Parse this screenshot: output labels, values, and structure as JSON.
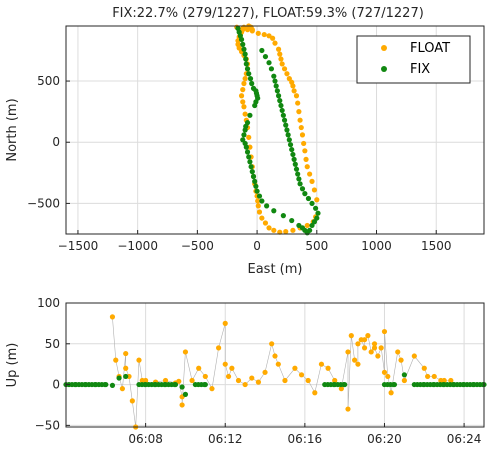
{
  "colors": {
    "float": "#ffaa00",
    "fix": "#118811",
    "grid": "#dcdcdc",
    "axis": "#262626",
    "track": "#b0b0b0"
  },
  "chart_data": [
    {
      "type": "scatter",
      "title": "FIX:22.7% (279/1227), FLOAT:59.3% (727/1227)",
      "xlabel": "East (m)",
      "ylabel": "North (m)",
      "xlim": [
        -1600,
        1900
      ],
      "ylim": [
        -750,
        950
      ],
      "xticks": [
        -1500,
        -1000,
        -500,
        0,
        500,
        1000,
        1500
      ],
      "yticks": [
        -500,
        0,
        500
      ],
      "grid": true,
      "legend": {
        "placement": "top-right",
        "entries": [
          "FLOAT",
          "FIX"
        ]
      },
      "series": [
        {
          "name": "FLOAT",
          "x": [
            -170,
            -120,
            -80,
            -40,
            10,
            60,
            100,
            130,
            150,
            180,
            190,
            200,
            210,
            230,
            250,
            270,
            290,
            300,
            310,
            330,
            340,
            350,
            360,
            370,
            380,
            390,
            400,
            410,
            420,
            440,
            460,
            480,
            500,
            490,
            470,
            420,
            360,
            300,
            240,
            190,
            140,
            100,
            70,
            40,
            20,
            10,
            5,
            0,
            -10,
            -20,
            -30,
            -40,
            -50,
            -60,
            -70,
            -80,
            -90,
            -100,
            -110,
            -120,
            -130,
            -120,
            -110,
            -100,
            -90,
            -80,
            -80,
            -90,
            -110,
            -130,
            -150,
            -160,
            -160,
            -150,
            -140,
            -130,
            -120,
            -110,
            -70,
            -50,
            -40
          ],
          "y": [
            940,
            930,
            920,
            910,
            890,
            880,
            870,
            850,
            810,
            760,
            720,
            680,
            640,
            600,
            560,
            520,
            490,
            460,
            420,
            380,
            320,
            250,
            180,
            120,
            60,
            -10,
            -70,
            -140,
            -200,
            -260,
            -320,
            -390,
            -470,
            -610,
            -650,
            -680,
            -700,
            -720,
            -730,
            -735,
            -720,
            -700,
            -660,
            -620,
            -570,
            -520,
            -480,
            -440,
            -400,
            -340,
            -280,
            -200,
            -120,
            -40,
            40,
            120,
            180,
            230,
            290,
            330,
            380,
            430,
            480,
            520,
            560,
            600,
            640,
            680,
            710,
            740,
            770,
            800,
            830,
            860,
            880,
            900,
            920,
            940,
            950,
            940,
            920
          ]
        },
        {
          "name": "FIX",
          "x": [
            -160,
            -150,
            -140,
            -130,
            -120,
            -110,
            -100,
            -95,
            -90,
            -80,
            -70,
            -55,
            -45,
            -30,
            -10,
            -5,
            0,
            5,
            -10,
            -20,
            -60,
            -80,
            -95,
            -100,
            -110,
            -120,
            -100,
            -90,
            -80,
            -70,
            -60,
            -50,
            -40,
            -30,
            -20,
            -10,
            0,
            20,
            40,
            80,
            140,
            220,
            290,
            350,
            380,
            400,
            420,
            440,
            460,
            480,
            500,
            510,
            490,
            460,
            430,
            400,
            380,
            360,
            350,
            340,
            330,
            320,
            310,
            300,
            290,
            280,
            270,
            260,
            250,
            240,
            230,
            220,
            210,
            200,
            190,
            180,
            170,
            160,
            150,
            140,
            120,
            100,
            70,
            40
          ],
          "y": [
            930,
            900,
            870,
            840,
            800,
            760,
            720,
            680,
            640,
            600,
            560,
            520,
            480,
            440,
            420,
            400,
            380,
            360,
            330,
            300,
            220,
            160,
            130,
            100,
            60,
            20,
            -10,
            -40,
            -80,
            -120,
            -160,
            -200,
            -240,
            -280,
            -320,
            -360,
            -400,
            -440,
            -480,
            -520,
            -560,
            -600,
            -640,
            -680,
            -700,
            -720,
            -740,
            -720,
            -680,
            -650,
            -620,
            -580,
            -540,
            -500,
            -460,
            -420,
            -380,
            -340,
            -300,
            -260,
            -220,
            -180,
            -140,
            -100,
            -60,
            -20,
            20,
            60,
            100,
            140,
            180,
            220,
            260,
            300,
            340,
            380,
            420,
            460,
            500,
            540,
            600,
            650,
            700,
            750
          ]
        }
      ]
    },
    {
      "type": "scatter",
      "title": "",
      "xlabel": "",
      "ylabel": "Up (m)",
      "xlim": [
        "06:04:00",
        "06:25:00"
      ],
      "ylim": [
        -52,
        100
      ],
      "xticks": [
        "06:08",
        "06:12",
        "06:16",
        "06:20",
        "06:24"
      ],
      "yticks": [
        -50,
        0,
        50,
        100
      ],
      "grid": true,
      "series": [
        {
          "name": "FLOAT",
          "t": [
            "06:06:20",
            "06:06:40",
            "06:06:50",
            "06:07:00",
            "06:07:10",
            "06:07:20",
            "06:07:30",
            "06:07:40",
            "06:07:50",
            "06:08:00",
            "06:08:30",
            "06:09:00",
            "06:09:30",
            "06:09:40",
            "06:09:50",
            "06:10:00",
            "06:10:20",
            "06:10:40",
            "06:11:00",
            "06:11:20",
            "06:11:40",
            "06:12:00",
            "06:12:10",
            "06:12:20",
            "06:12:40",
            "06:13:00",
            "06:13:20",
            "06:13:40",
            "06:14:00",
            "06:14:20",
            "06:14:40",
            "06:15:00",
            "06:15:30",
            "06:15:50",
            "06:16:10",
            "06:16:30",
            "06:16:50",
            "06:17:10",
            "06:17:30",
            "06:17:50",
            "06:18:10",
            "06:18:20",
            "06:18:30",
            "06:18:40",
            "06:18:50",
            "06:19:00",
            "06:19:10",
            "06:19:20",
            "06:19:30",
            "06:19:40",
            "06:19:50",
            "06:20:00",
            "06:20:10",
            "06:20:20",
            "06:20:40",
            "06:21:00",
            "06:21:30",
            "06:22:00",
            "06:22:30",
            "06:23:00",
            "06:23:20",
            "06:06:30",
            "06:07:00",
            "06:08:00",
            "06:09:50",
            "06:12:00",
            "06:14:30",
            "06:18:10",
            "06:18:40",
            "06:19:00",
            "06:19:30",
            "06:20:00",
            "06:20:50",
            "06:22:10",
            "06:22:50"
          ],
          "y": [
            83,
            10,
            -5,
            38,
            10,
            -20,
            -52,
            30,
            5,
            5,
            3,
            5,
            2,
            4,
            -15,
            40,
            5,
            20,
            10,
            -5,
            45,
            75,
            10,
            20,
            5,
            0,
            8,
            3,
            15,
            50,
            25,
            5,
            20,
            12,
            5,
            -10,
            25,
            20,
            5,
            -5,
            40,
            60,
            30,
            25,
            55,
            45,
            60,
            40,
            50,
            35,
            45,
            15,
            10,
            -10,
            40,
            5,
            35,
            20,
            10,
            5,
            5,
            30,
            20,
            2,
            -25,
            25,
            35,
            -30,
            50,
            55,
            45,
            65,
            30,
            10,
            5
          ]
        },
        {
          "name": "FIX",
          "t": [
            "06:04:00",
            "06:04:30",
            "06:05:00",
            "06:05:30",
            "06:06:00",
            "06:06:20",
            "06:06:40",
            "06:07:00",
            "06:07:40",
            "06:08:00",
            "06:08:30",
            "06:09:00",
            "06:09:30",
            "06:09:50",
            "06:10:00",
            "06:10:30",
            "06:11:00",
            "06:17:00",
            "06:17:30",
            "06:18:00",
            "06:20:00",
            "06:20:30",
            "06:21:00",
            "06:21:30",
            "06:22:00",
            "06:22:30",
            "06:23:00",
            "06:23:30",
            "06:24:00",
            "06:24:30",
            "06:25:00"
          ],
          "y": [
            0,
            0,
            0,
            0,
            0,
            -1,
            8,
            10,
            0,
            0,
            0,
            0,
            0,
            -3,
            -12,
            0,
            0,
            0,
            0,
            0,
            0,
            0,
            12,
            0,
            0,
            0,
            0,
            0,
            0,
            0,
            0
          ]
        }
      ]
    }
  ]
}
